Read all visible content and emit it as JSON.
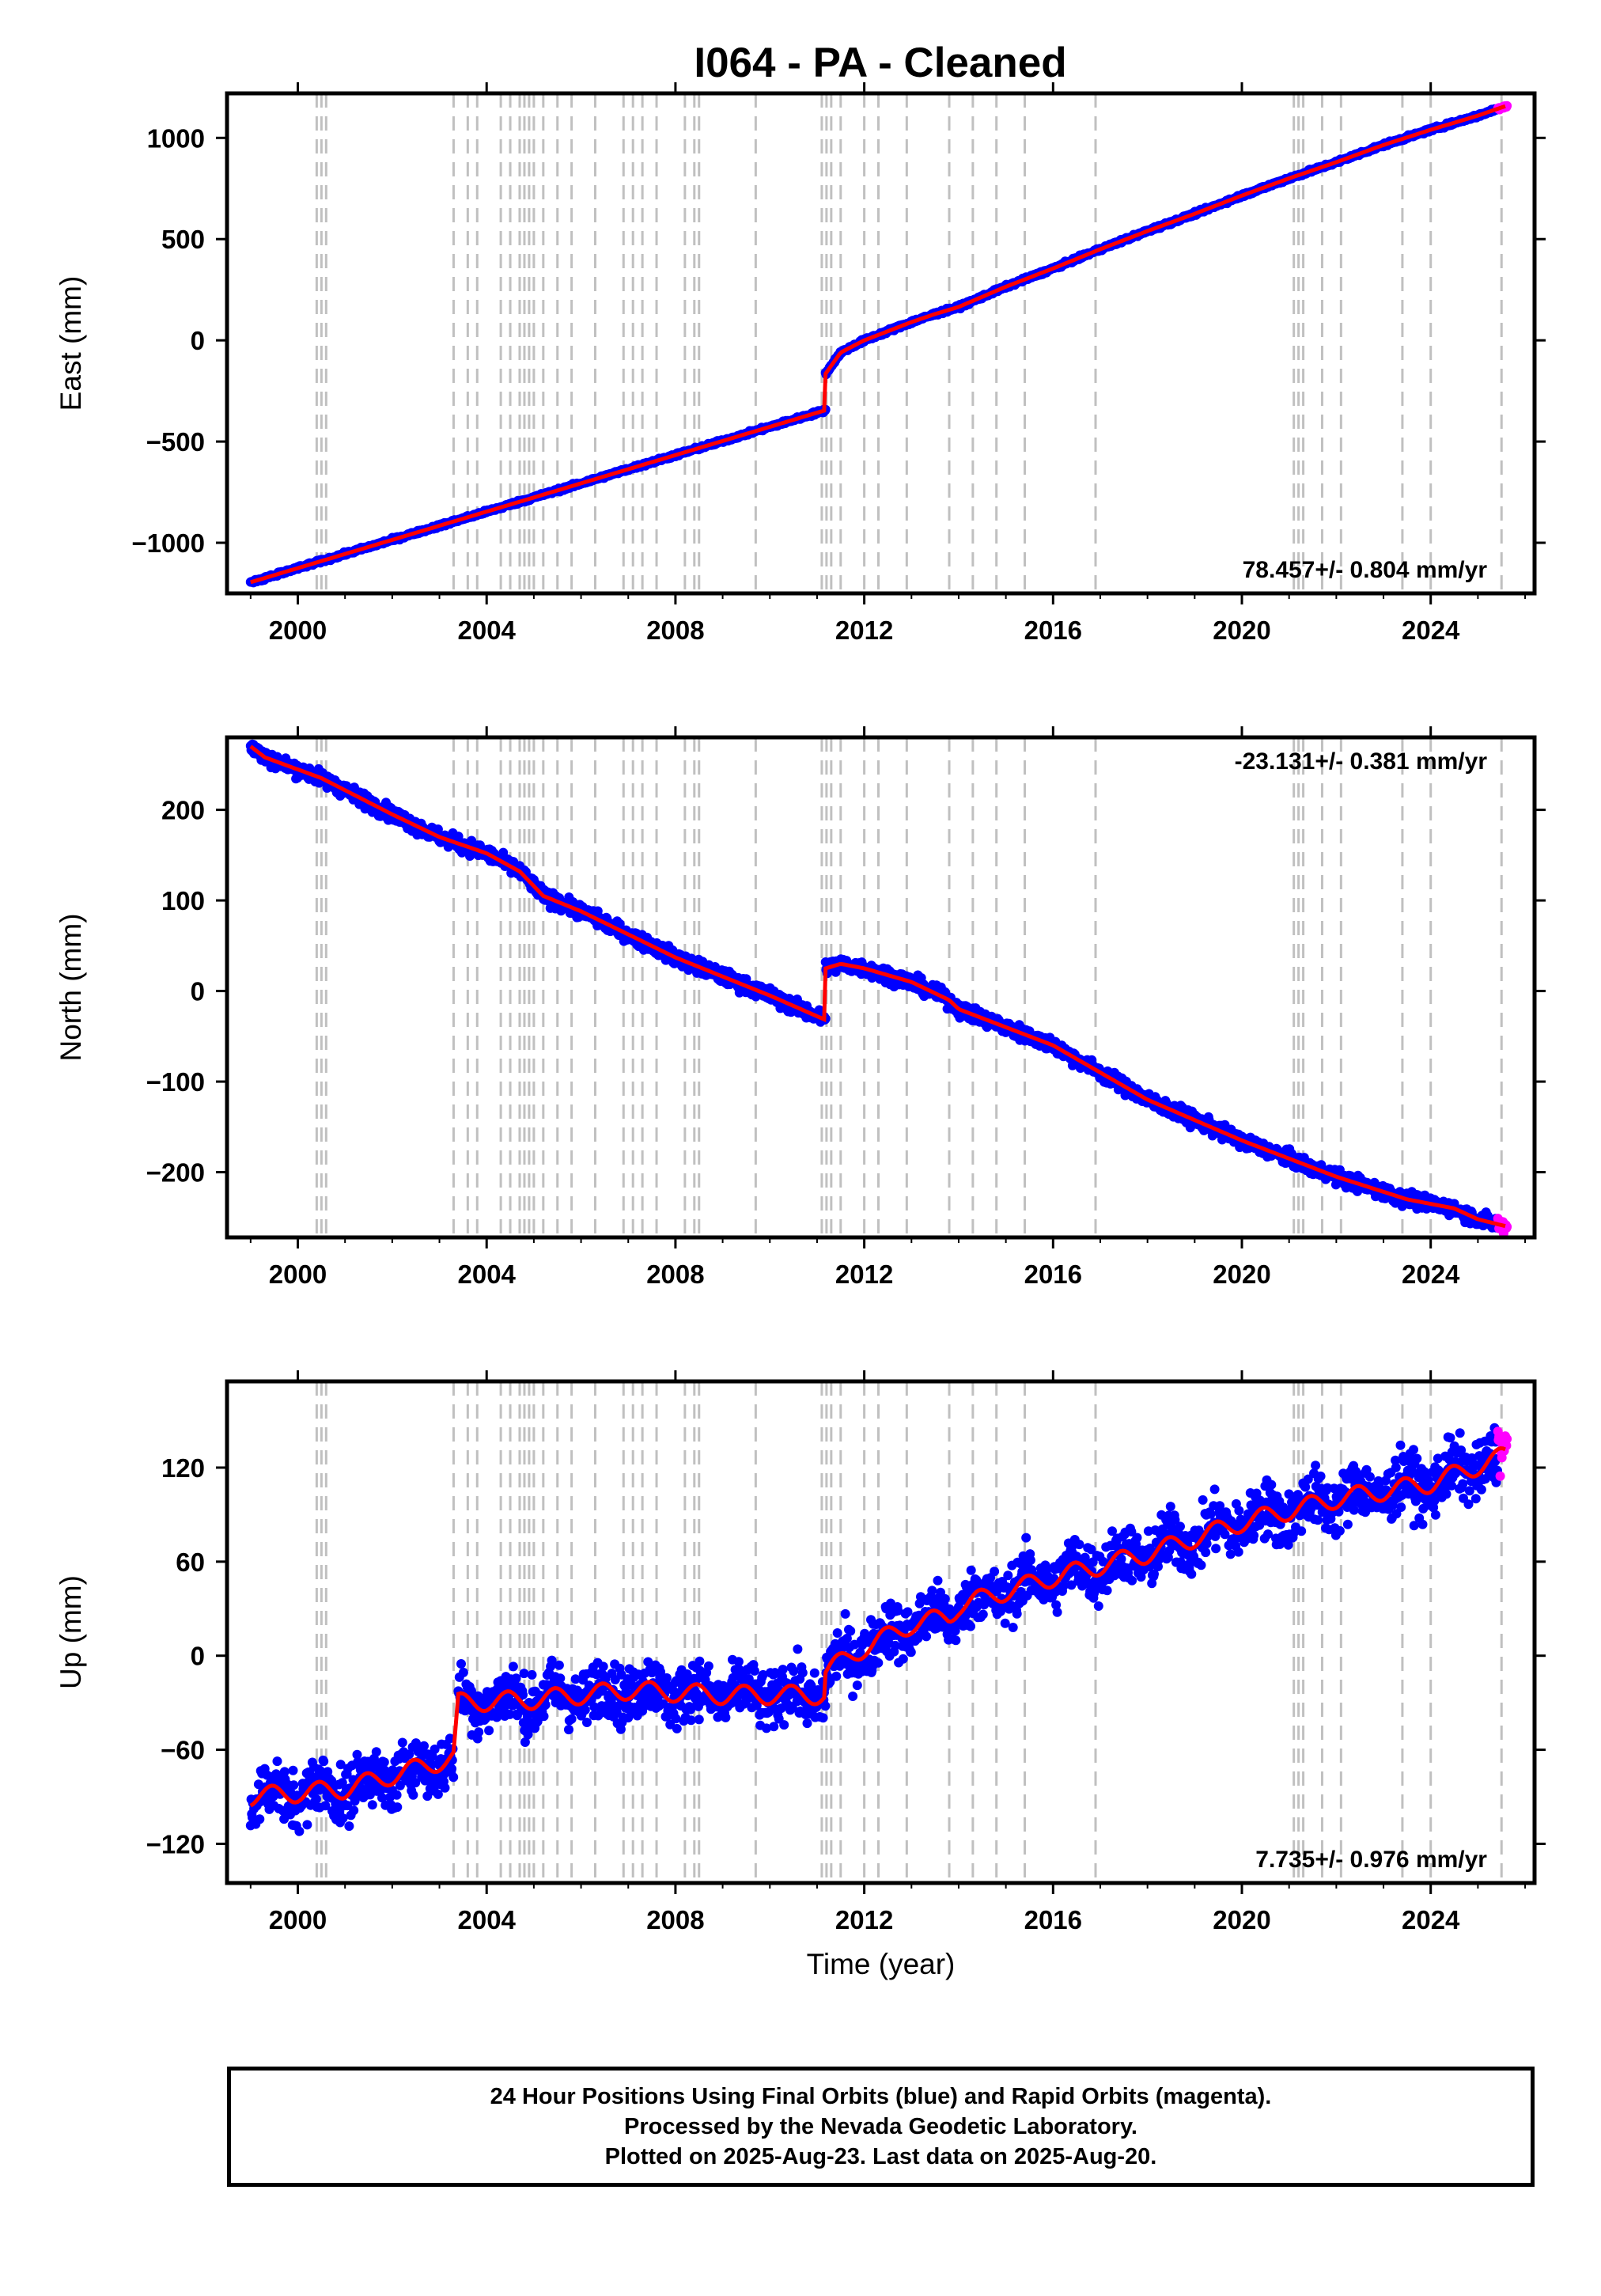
{
  "title": "I064  - PA - Cleaned",
  "footer": {
    "line1": "24 Hour Positions Using Final Orbits (blue) and Rapid Orbits (magenta).",
    "line2": "Processed by the Nevada Geodetic Laboratory.",
    "line3": "Plotted on 2025-Aug-23. Last data on 2025-Aug-20."
  },
  "colors": {
    "final_orbits": "#0000ff",
    "rapid_orbits": "#ff00ff",
    "model": "#ff0000",
    "event_lines": "#c0c0c0"
  },
  "chart_data": [
    {
      "type": "scatter",
      "ylabel": "East (mm)",
      "xlabel": "",
      "xlim": [
        1998.5,
        2026.2
      ],
      "ylim": [
        -1250,
        1220
      ],
      "xticks": [
        2000,
        2004,
        2008,
        2012,
        2016,
        2020,
        2024
      ],
      "yticks": [
        -1000,
        -500,
        0,
        500,
        1000
      ],
      "ytick_labels": [
        "−1000",
        "−500",
        "0",
        "500",
        "1000"
      ],
      "rate_annotation": "78.457+/- 0.804 mm/yr",
      "annotation_position": "bottom-right",
      "noise_mm": 4,
      "seasonal_mm": 0,
      "series": [
        {
          "x": [
            1999.0,
            2011.18
          ],
          "y": [
            -1195,
            -345
          ]
        },
        {
          "x": [
            2011.18,
            2011.5,
            2012.0,
            2012.5,
            2013.0,
            2013.5,
            2014.0,
            2015.0,
            2016.0,
            2017.0,
            2018.0,
            2019.0,
            2020.0,
            2021.0,
            2022.0,
            2023.0,
            2024.0,
            2025.0,
            2025.62
          ],
          "y": [
            -165,
            -60,
            0,
            45,
            90,
            130,
            165,
            265,
            355,
            450,
            540,
            625,
            715,
            800,
            880,
            965,
            1040,
            1110,
            1160
          ]
        }
      ]
    },
    {
      "type": "scatter",
      "ylabel": "North (mm)",
      "xlabel": "",
      "xlim": [
        1998.5,
        2026.2
      ],
      "ylim": [
        -272,
        280
      ],
      "xticks": [
        2000,
        2004,
        2008,
        2012,
        2016,
        2020,
        2024
      ],
      "yticks": [
        -200,
        -100,
        0,
        100,
        200
      ],
      "ytick_labels": [
        "−200",
        "−100",
        "0",
        "100",
        "200"
      ],
      "rate_annotation": "-23.131+/- 0.381 mm/yr",
      "annotation_position": "top-right",
      "noise_mm": 4,
      "seasonal_mm": 0,
      "series": [
        {
          "x": [
            1999.0,
            1999.3,
            2000.5,
            2002.0,
            2003.0,
            2004.0,
            2004.7,
            2005.2,
            2006.0,
            2008.0,
            2010.0,
            2011.18
          ],
          "y": [
            270,
            258,
            235,
            195,
            170,
            152,
            132,
            105,
            88,
            37,
            -5,
            -32
          ]
        },
        {
          "x": [
            2011.18,
            2011.5,
            2012.0,
            2013.0,
            2013.8,
            2014.0,
            2016.0,
            2018.0,
            2020.0,
            2022.0,
            2023.5,
            2024.0,
            2024.5,
            2025.0,
            2025.62
          ],
          "y": [
            25,
            30,
            25,
            10,
            -10,
            -20,
            -60,
            -120,
            -165,
            -205,
            -230,
            -235,
            -240,
            -252,
            -260
          ]
        }
      ]
    },
    {
      "type": "scatter",
      "ylabel": "Up (mm)",
      "xlabel": "Time (year)",
      "xlim": [
        1998.5,
        2026.2
      ],
      "ylim": [
        -145,
        175
      ],
      "xticks": [
        2000,
        2004,
        2008,
        2012,
        2016,
        2020,
        2024
      ],
      "yticks": [
        -120,
        -60,
        0,
        60,
        120
      ],
      "ytick_labels": [
        "−120",
        "−60",
        "0",
        "60",
        "120"
      ],
      "rate_annotation": "7.735+/- 0.976 mm/yr",
      "annotation_position": "bottom-right",
      "noise_mm": 9,
      "seasonal_mm": 6,
      "series": [
        {
          "x": [
            1999.0,
            2001.0,
            2003.3
          ],
          "y": [
            -90,
            -85,
            -65
          ]
        },
        {
          "x": [
            2003.4,
            2005.0,
            2007.0,
            2009.0,
            2011.18
          ],
          "y": [
            -30,
            -28,
            -22,
            -25,
            -25
          ]
        },
        {
          "x": [
            2011.18,
            2012.0,
            2013.0,
            2013.8,
            2014.0,
            2016.0,
            2018.0,
            2020.0,
            2022.0,
            2024.0,
            2025.62
          ],
          "y": [
            -10,
            5,
            20,
            25,
            32,
            50,
            65,
            85,
            100,
            110,
            128
          ]
        }
      ]
    }
  ],
  "event_lines": [
    2000.4,
    2000.5,
    2000.6,
    2003.3,
    2003.6,
    2003.8,
    2004.3,
    2004.5,
    2004.7,
    2004.8,
    2004.9,
    2005.0,
    2005.2,
    2005.5,
    2005.8,
    2006.3,
    2006.9,
    2007.1,
    2007.3,
    2007.6,
    2008.2,
    2008.4,
    2008.5,
    2009.7,
    2011.1,
    2011.2,
    2011.3,
    2011.5,
    2012.0,
    2012.3,
    2012.9,
    2013.8,
    2014.3,
    2014.8,
    2015.4,
    2016.9,
    2021.1,
    2021.2,
    2021.3,
    2021.7,
    2022.1,
    2023.4,
    2024.0,
    2025.5
  ]
}
